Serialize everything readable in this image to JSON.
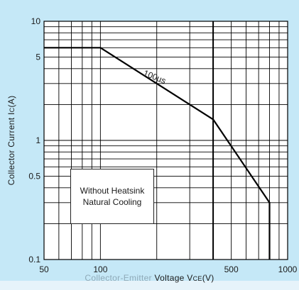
{
  "chart_data": {
    "type": "line",
    "title": "",
    "xlabel": "Collector-Emitter Voltage VCE(V)",
    "xlabel_faded_part": "Collector-Emitter ",
    "xlabel_main_part": "Voltage V",
    "xlabel_sub": "CE",
    "xlabel_unit": "(V)",
    "ylabel": "Collector Current IC(A)",
    "ylabel_main": "Collector Current I",
    "ylabel_sub": "C",
    "ylabel_unit": "(A)",
    "x_scale": "log",
    "y_scale": "log",
    "xlim": [
      50,
      1000
    ],
    "ylim": [
      0.1,
      10
    ],
    "x_ticks": [
      {
        "value": 50,
        "label": "50"
      },
      {
        "value": 100,
        "label": "100"
      },
      {
        "value": 500,
        "label": "500"
      },
      {
        "value": 1000,
        "label": "1000"
      }
    ],
    "y_ticks": [
      {
        "value": 0.1,
        "label": "0.1"
      },
      {
        "value": 0.5,
        "label": "0.5"
      },
      {
        "value": 1,
        "label": "1"
      },
      {
        "value": 5,
        "label": "5"
      },
      {
        "value": 10,
        "label": "10"
      }
    ],
    "grid": true,
    "series": [
      {
        "name": "100µs",
        "x": [
          50,
          100,
          400,
          800,
          800
        ],
        "y": [
          6,
          6,
          1.5,
          0.3,
          0.1
        ]
      }
    ],
    "vertical_lines": [
      400
    ],
    "annotations": {
      "series_label": "100µs",
      "box_line1": "Without Heatsink",
      "box_line2": "Natural Cooling"
    }
  },
  "colors": {
    "background": "#c5e8f7",
    "plot_area": "#ffffff",
    "line": "#000000",
    "grid": "#000000"
  }
}
